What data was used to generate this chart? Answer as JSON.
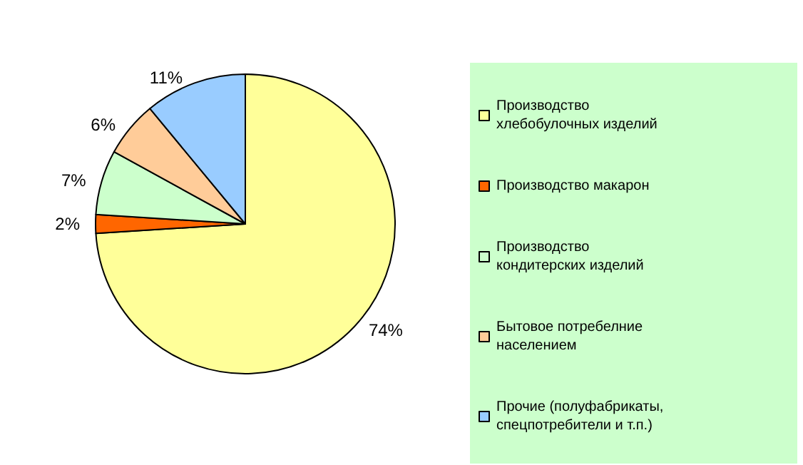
{
  "chart_data": {
    "type": "pie",
    "categories": [
      "Производство хлебобулочных изделий",
      "Производство макарон",
      "Производство кондитерских изделий",
      "Бытовое потребелние населением",
      "Прочие (полуфабрикаты, спецпотребители и т.п.)"
    ],
    "values": [
      74,
      2,
      7,
      6,
      11
    ],
    "colors": [
      "#ffff99",
      "#ff6600",
      "#ccffcc",
      "#ffcc99",
      "#99ccff"
    ],
    "value_labels": [
      "74%",
      "2%",
      "7%",
      "6%",
      "11%"
    ],
    "legend": "right"
  }
}
